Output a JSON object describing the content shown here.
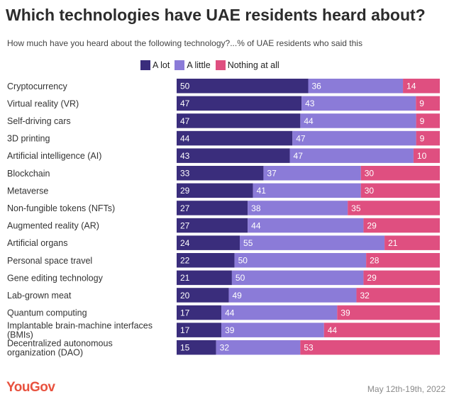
{
  "chart_data": {
    "type": "bar",
    "orientation": "horizontal",
    "stacked": true,
    "title": "Which technologies have UAE residents heard about?",
    "subtitle": "How much have you heard about the following technology?...% of UAE residents who said this",
    "xlabel": "",
    "ylabel": "",
    "xlim": [
      0,
      100
    ],
    "legend_position": "top",
    "categories": [
      "Cryptocurrency",
      "Virtual reality (VR)",
      "Self-driving cars",
      "3D printing",
      "Artificial intelligence (AI)",
      "Blockchain",
      "Metaverse",
      "Non-fungible tokens (NFTs)",
      "Augmented reality (AR)",
      "Artificial organs",
      "Personal space travel",
      "Gene editing technology",
      "Lab-grown meat",
      "Quantum computing",
      "Implantable brain-machine interfaces (BMIs)",
      "Decentralized autonomous organization (DAO)"
    ],
    "series": [
      {
        "name": "A lot",
        "color": "#3a2d7c",
        "values": [
          50,
          47,
          47,
          44,
          43,
          33,
          29,
          27,
          27,
          24,
          22,
          21,
          20,
          17,
          17,
          15
        ]
      },
      {
        "name": "A little",
        "color": "#8b7bd8",
        "values": [
          36,
          43,
          44,
          47,
          47,
          37,
          41,
          38,
          44,
          55,
          50,
          50,
          49,
          44,
          39,
          32
        ]
      },
      {
        "name": "Nothing at all",
        "color": "#df4f80",
        "values": [
          14,
          9,
          9,
          9,
          10,
          30,
          30,
          35,
          29,
          21,
          28,
          29,
          32,
          39,
          44,
          53
        ]
      }
    ]
  },
  "brand": "YouGov",
  "date_range": "May 12th-19th, 2022"
}
